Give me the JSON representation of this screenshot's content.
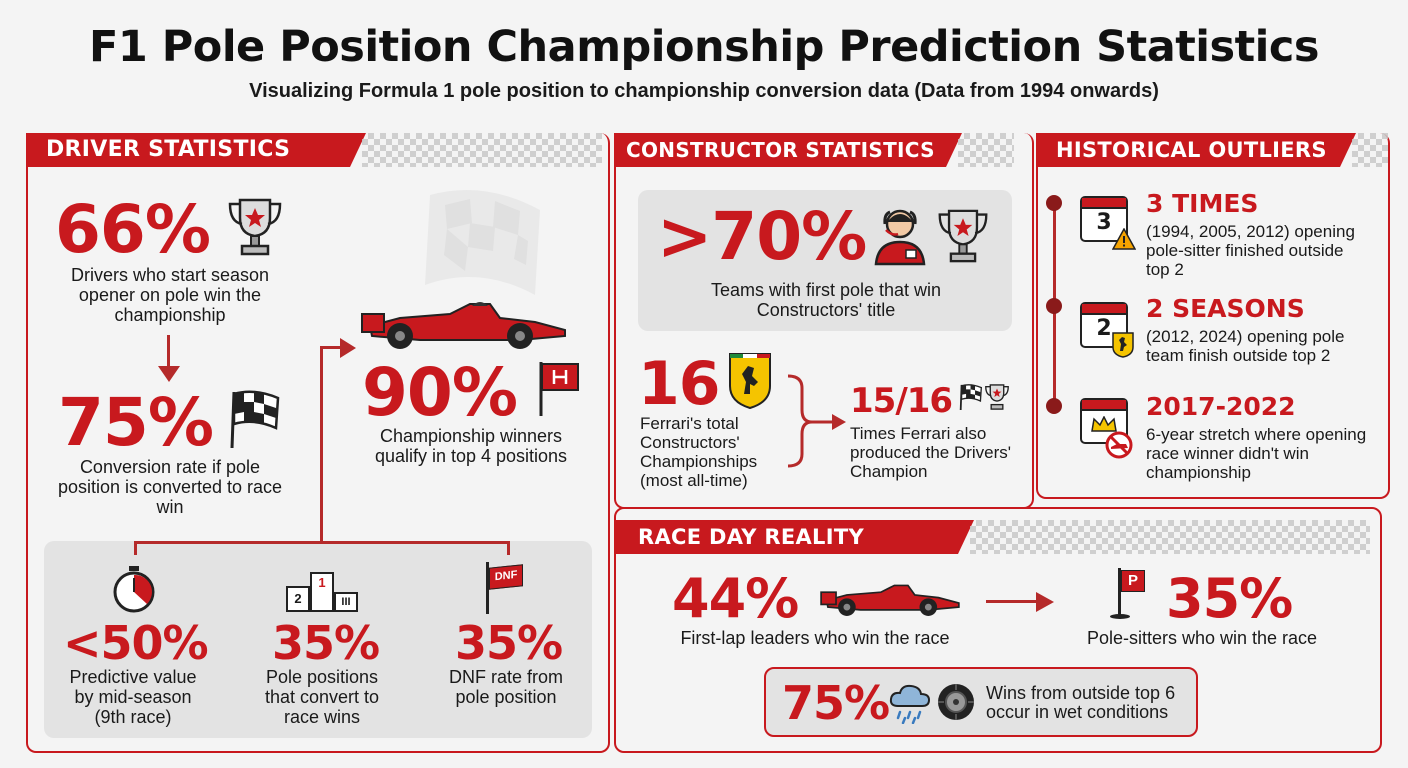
{
  "title": "F1 Pole Position Championship Prediction Statistics",
  "subtitle": "Visualizing Formula 1 pole position to championship conversion data (Data from 1994 onwards)",
  "driver": {
    "header": "DRIVER STATISTICS",
    "stat1_value": "66%",
    "stat1_desc": "Drivers who start season opener on pole win the championship",
    "stat2_value": "75%",
    "stat2_desc": "Conversion rate if pole position is converted to race win",
    "stat3_value": "90%",
    "stat3_desc": "Championship winners qualify in top 4 positions",
    "box": {
      "a_value": "<50%",
      "a_desc": "Predictive value by mid-season (9th race)",
      "b_value": "35%",
      "b_desc": "Pole positions that convert to race wins",
      "c_value": "35%",
      "c_desc": "DNF rate from pole position",
      "podium_labels": [
        "2",
        "1",
        "III"
      ],
      "dnf_flag": "DNF"
    }
  },
  "constructor": {
    "header": "CONSTRUCTOR STATISTICS",
    "top_value": ">70%",
    "top_desc": "Teams with first pole that win Constructors' title",
    "ferrari_value": "16",
    "ferrari_desc": "Ferrari's total Constructors' Championships (most all-time)",
    "ratio_value": "15/16",
    "ratio_desc": "Times Ferrari also produced the Drivers' Champion"
  },
  "outliers": {
    "header": "HISTORICAL OUTLIERS",
    "items": [
      {
        "cal": "3",
        "value": "3 TIMES",
        "desc": "(1994, 2005, 2012) opening pole-sitter finished outside top 2"
      },
      {
        "cal": "2",
        "value": "2 SEASONS",
        "desc": "(2012, 2024) opening pole team finish outside top 2"
      },
      {
        "cal": "",
        "value": "2017-2022",
        "desc": "6-year stretch where opening race winner didn't win championship"
      }
    ]
  },
  "raceday": {
    "header": "RACE DAY REALITY",
    "left_value": "44%",
    "left_desc": "First-lap leaders who win the race",
    "right_value": "35%",
    "right_desc": "Pole-sitters who win the race",
    "pole_flag": "P",
    "wet_value": "75%",
    "wet_desc": "Wins from outside top 6 occur in wet conditions"
  },
  "colors": {
    "accent": "#c8191e",
    "panel_grey": "#e3e3e3",
    "background": "#f4f4f4"
  }
}
